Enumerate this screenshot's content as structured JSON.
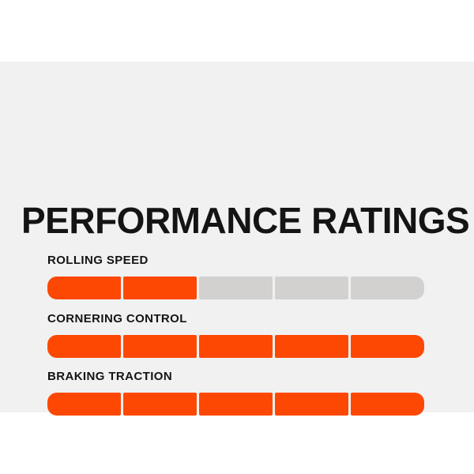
{
  "title": "PERFORMANCE RATINGS",
  "colors": {
    "page_background": "#ffffff",
    "panel_background": "#f1f1f2",
    "text": "#141414",
    "segment_filled": "#fc4802",
    "segment_empty": "#d3d1d0"
  },
  "ratings": [
    {
      "label": "ROLLING SPEED",
      "value": 2,
      "max": 5
    },
    {
      "label": "CORNERING CONTROL",
      "value": 5,
      "max": 5
    },
    {
      "label": "BRAKING TRACTION",
      "value": 5,
      "max": 5
    }
  ],
  "chart_data": {
    "type": "bar",
    "title": "PERFORMANCE RATINGS",
    "categories": [
      "ROLLING SPEED",
      "CORNERING CONTROL",
      "BRAKING TRACTION"
    ],
    "values": [
      2,
      5,
      5
    ],
    "value_range": [
      0,
      5
    ],
    "segments_per_bar": 5,
    "orientation": "horizontal",
    "xlabel": "",
    "ylabel": "",
    "legend": "none",
    "grid": false
  }
}
